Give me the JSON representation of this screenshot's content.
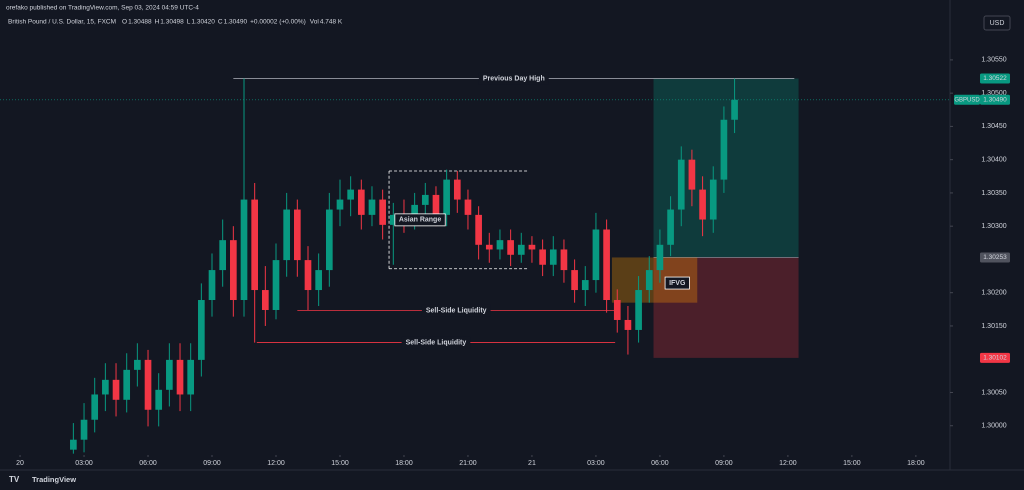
{
  "header": {
    "publisher": "orefako published on TradingView.com, Sep 03, 2024 04:59 UTC-4",
    "symbol": "British Pound / U.S. Dollar, 15, FXCM",
    "ohlc": [
      {
        "k": "O",
        "v": "1.30488"
      },
      {
        "k": "H",
        "v": "1.30498"
      },
      {
        "k": "L",
        "v": "1.30420"
      },
      {
        "k": "C",
        "v": "1.30490"
      }
    ],
    "change": "+0.00002 (+0.00%)",
    "volume_key": "Vol",
    "volume": "4.748 K",
    "currency": "USD",
    "footer": "TradingView"
  },
  "chart_data": {
    "type": "candlestick",
    "up_color": "#089981",
    "down_color": "#f23645",
    "x": [
      2.5,
      3,
      3.5,
      4,
      4.5,
      5,
      5.5,
      6,
      6.5,
      7,
      7.5,
      8,
      8.5,
      9,
      9.5,
      10,
      10.5,
      11,
      11.5,
      12,
      12.5,
      13,
      13.5,
      14,
      14.5,
      15,
      15.5,
      16,
      16.5,
      17,
      17.5,
      18,
      18.5,
      19,
      19.5,
      20,
      20.5,
      21,
      21.5,
      22,
      22.5,
      23,
      23.5,
      24,
      24.5,
      25,
      25.5,
      26,
      26.5,
      27,
      27.5,
      28,
      28.5,
      29,
      29.5,
      30,
      30.5,
      31,
      31.5,
      32,
      32.5,
      33,
      33.5
    ],
    "open": [
      1.29964,
      1.29979,
      1.30009,
      1.30047,
      1.30069,
      1.30039,
      1.30084,
      1.30099,
      1.30024,
      1.30054,
      1.30099,
      1.30047,
      1.30099,
      1.30189,
      1.30234,
      1.30279,
      1.30189,
      1.3034,
      1.30204,
      1.30174,
      1.30249,
      1.30325,
      1.30249,
      1.30204,
      1.30234,
      1.30325,
      1.3034,
      1.30355,
      1.30317,
      1.3034,
      1.30302,
      1.30317,
      1.3031,
      1.30332,
      1.30347,
      1.30317,
      1.3037,
      1.3034,
      1.30317,
      1.30272,
      1.30265,
      1.30279,
      1.30257,
      1.30272,
      1.30265,
      1.30242,
      1.30265,
      1.30234,
      1.30204,
      1.30219,
      1.30295,
      1.30189,
      1.30159,
      1.30144,
      1.30204,
      1.30234,
      1.30272,
      1.30325,
      1.304,
      1.30355,
      1.3031,
      1.3037,
      1.3046
    ],
    "high": [
      1.30004,
      1.30034,
      1.30072,
      1.30094,
      1.30094,
      1.30109,
      1.30124,
      1.30114,
      1.30079,
      1.30124,
      1.30124,
      1.30124,
      1.30214,
      1.30259,
      1.3031,
      1.303,
      1.30522,
      1.30365,
      1.3024,
      1.30274,
      1.3035,
      1.3034,
      1.3027,
      1.30259,
      1.3035,
      1.3037,
      1.30375,
      1.3037,
      1.3036,
      1.30355,
      1.30335,
      1.3034,
      1.3035,
      1.30365,
      1.3036,
      1.30385,
      1.30383,
      1.30355,
      1.3033,
      1.3029,
      1.30295,
      1.30295,
      1.3029,
      1.30285,
      1.3028,
      1.30285,
      1.3028,
      1.3025,
      1.3024,
      1.3032,
      1.3031,
      1.30205,
      1.3018,
      1.30225,
      1.30255,
      1.30295,
      1.30345,
      1.3042,
      1.30415,
      1.30375,
      1.3039,
      1.3048,
      1.30522
    ],
    "low": [
      1.29958,
      1.2996,
      1.2999,
      1.30022,
      1.30014,
      1.3002,
      1.30059,
      1.29999,
      1.29999,
      1.30029,
      1.30022,
      1.30022,
      1.30074,
      1.30164,
      1.30209,
      1.30164,
      1.30164,
      1.30125,
      1.3015,
      1.3016,
      1.30224,
      1.30224,
      1.30174,
      1.3018,
      1.30209,
      1.303,
      1.30315,
      1.30295,
      1.303,
      1.3028,
      1.30242,
      1.3029,
      1.30295,
      1.30315,
      1.303,
      1.303,
      1.3032,
      1.30295,
      1.3025,
      1.30245,
      1.3025,
      1.3024,
      1.30245,
      1.30245,
      1.30225,
      1.30225,
      1.30215,
      1.30185,
      1.3018,
      1.302,
      1.3017,
      1.3014,
      1.30107,
      1.30125,
      1.30185,
      1.30215,
      1.30255,
      1.303,
      1.3033,
      1.30285,
      1.3029,
      1.3035,
      1.3044
    ],
    "close": [
      1.29979,
      1.30009,
      1.30047,
      1.30069,
      1.30039,
      1.30084,
      1.30099,
      1.30024,
      1.30054,
      1.30099,
      1.30047,
      1.30099,
      1.30189,
      1.30234,
      1.30279,
      1.30189,
      1.3034,
      1.30204,
      1.30174,
      1.30249,
      1.30325,
      1.30249,
      1.30204,
      1.30234,
      1.30325,
      1.3034,
      1.30355,
      1.30317,
      1.3034,
      1.30302,
      1.30317,
      1.3031,
      1.30332,
      1.30347,
      1.30317,
      1.3037,
      1.3034,
      1.30317,
      1.30272,
      1.30265,
      1.30279,
      1.30257,
      1.30272,
      1.30265,
      1.30242,
      1.30265,
      1.30234,
      1.30204,
      1.30219,
      1.30295,
      1.30189,
      1.30159,
      1.30144,
      1.30204,
      1.30234,
      1.30272,
      1.30325,
      1.304,
      1.30355,
      1.3031,
      1.3037,
      1.3046,
      1.3049
    ],
    "xlim": [
      -0.94,
      43.6
    ],
    "ylim": [
      1.29956,
      1.30625
    ],
    "xticks": [
      {
        "value": 0,
        "label": "20"
      },
      {
        "value": 3,
        "label": "03:00"
      },
      {
        "value": 6,
        "label": "06:00"
      },
      {
        "value": 9,
        "label": "09:00"
      },
      {
        "value": 12,
        "label": "12:00"
      },
      {
        "value": 15,
        "label": "15:00"
      },
      {
        "value": 18,
        "label": "18:00"
      },
      {
        "value": 21,
        "label": "21:00"
      },
      {
        "value": 24,
        "label": "21"
      },
      {
        "value": 27,
        "label": "03:00"
      },
      {
        "value": 30,
        "label": "06:00"
      },
      {
        "value": 33,
        "label": "09:00"
      },
      {
        "value": 36,
        "label": "12:00"
      },
      {
        "value": 39,
        "label": "15:00"
      },
      {
        "value": 42,
        "label": "18:00"
      }
    ],
    "yticks": [
      {
        "value": 1.3055,
        "label": "1.30550"
      },
      {
        "value": 1.305,
        "label": "1.30500"
      },
      {
        "value": 1.3045,
        "label": "1.30450"
      },
      {
        "value": 1.304,
        "label": "1.30400"
      },
      {
        "value": 1.3035,
        "label": "1.30350"
      },
      {
        "value": 1.303,
        "label": "1.30300"
      },
      {
        "value": 1.302,
        "label": "1.30200"
      },
      {
        "value": 1.3015,
        "label": "1.30150"
      },
      {
        "value": 1.3005,
        "label": "1.30050"
      },
      {
        "value": 1.3,
        "label": "1.30000"
      }
    ],
    "last": {
      "symbol": "GBPUSD",
      "value": 1.3049,
      "label": "1.30490"
    },
    "annotations": {
      "prev_high": {
        "label": "Previous Day High",
        "y": 1.30522,
        "x": [
          10,
          36.3
        ]
      },
      "ssl": [
        {
          "label": "Sell-Side Liquidity",
          "y": 1.30173,
          "x": [
            13,
            27.9
          ]
        },
        {
          "label": "Sell-Side Liquidity",
          "y": 1.30125,
          "x": [
            11.1,
            27.9
          ]
        }
      ],
      "asian_range": {
        "label": "Asian Range",
        "x": [
          17.3,
          23.8
        ],
        "y": [
          1.30236,
          1.30383
        ]
      },
      "ifvg": {
        "label": "IFVG",
        "x": [
          27.75,
          31.75
        ],
        "y": [
          1.30185,
          1.30253
        ]
      },
      "position": {
        "x": [
          29.7,
          36.5
        ],
        "target": {
          "value": 1.30522,
          "label": "1.30522"
        },
        "entry": {
          "value": 1.30253,
          "label": "1.30253"
        },
        "stop": {
          "value": 1.30102,
          "label": "1.30102"
        }
      }
    }
  }
}
